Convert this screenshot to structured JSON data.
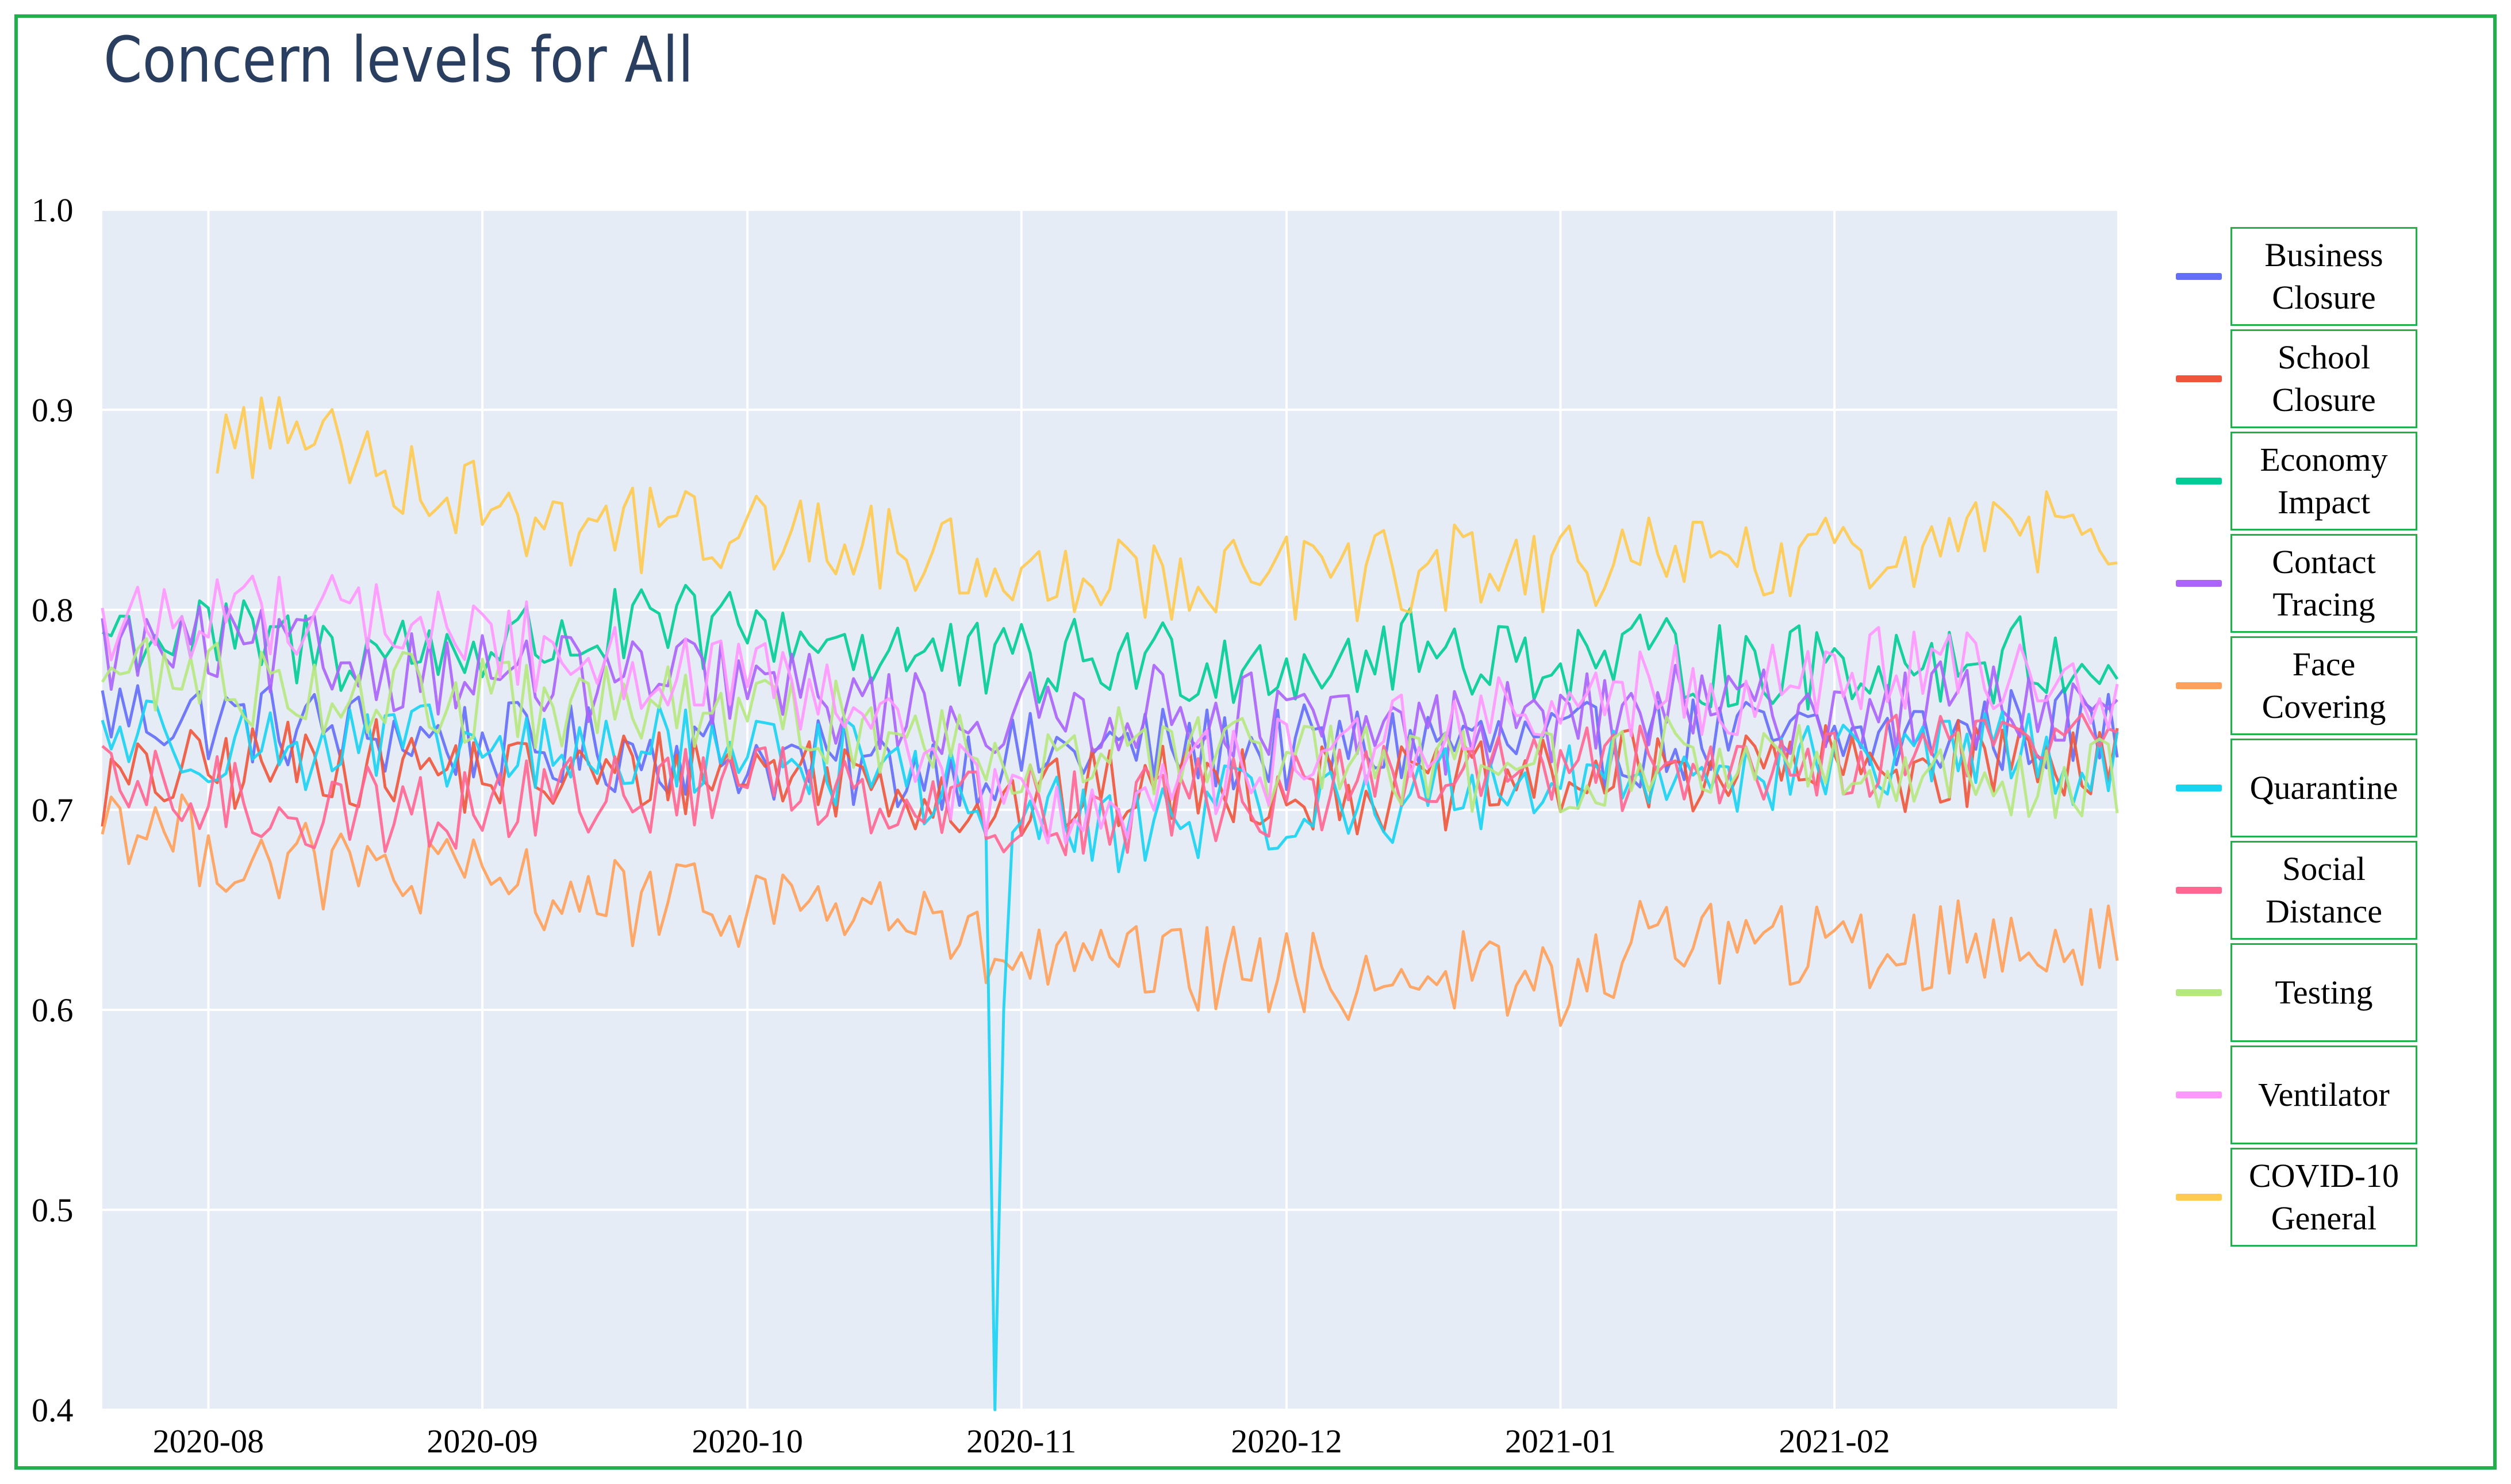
{
  "chart_data": {
    "type": "line",
    "title": "Concern levels for All",
    "xlabel": "",
    "ylabel": "",
    "x_range": [
      "2020-07-20",
      "2021-03-05"
    ],
    "ylim": [
      0.4,
      1.0
    ],
    "y_ticks": [
      "1.0",
      "0.9",
      "0.8",
      "0.7",
      "0.6",
      "0.5",
      "0.4"
    ],
    "x_ticks": [
      "2020-08",
      "2020-09",
      "2020-10",
      "2020-11",
      "2020-12",
      "2021-01",
      "2021-02"
    ],
    "grid": true,
    "legend_position": "right",
    "series": [
      {
        "name": "Business\nClosure",
        "color": "#636efa",
        "values": [
          0.75,
          0.745,
          0.74,
          0.735,
          0.73,
          0.73,
          0.725,
          0.72,
          0.725,
          0.73,
          0.73,
          0.73,
          0.735,
          0.73,
          0.735,
          0.735,
          0.735,
          0.74,
          0.74
        ]
      },
      {
        "name": "School\nClosure",
        "color": "#ef553b",
        "values": [
          0.71,
          0.72,
          0.725,
          0.72,
          0.715,
          0.72,
          0.72,
          0.715,
          0.7,
          0.71,
          0.715,
          0.71,
          0.71,
          0.715,
          0.72,
          0.72,
          0.72,
          0.725,
          0.73
        ]
      },
      {
        "name": "Economy\nImpact",
        "color": "#00cc96",
        "values": [
          0.79,
          0.785,
          0.78,
          0.78,
          0.785,
          0.79,
          0.79,
          0.78,
          0.77,
          0.775,
          0.775,
          0.775,
          0.78,
          0.775,
          0.775,
          0.77,
          0.775,
          0.775,
          0.775
        ]
      },
      {
        "name": "Contact\nTracing",
        "color": "#ab63fa",
        "values": [
          0.78,
          0.78,
          0.775,
          0.77,
          0.765,
          0.765,
          0.76,
          0.75,
          0.745,
          0.75,
          0.75,
          0.74,
          0.74,
          0.745,
          0.75,
          0.75,
          0.75,
          0.755,
          0.74
        ]
      },
      {
        "name": "Face\nCovering",
        "color": "#ffa15a",
        "values": [
          0.7,
          0.68,
          0.67,
          0.665,
          0.66,
          0.65,
          0.655,
          0.65,
          0.625,
          0.62,
          0.62,
          0.615,
          0.62,
          0.61,
          0.64,
          0.63,
          0.63,
          0.635,
          0.63
        ]
      },
      {
        "name": "Quarantine",
        "color": "#19d3f3",
        "values": [
          0.74,
          0.735,
          0.73,
          0.73,
          0.725,
          0.73,
          0.73,
          0.72,
          0.7,
          0.69,
          0.7,
          0.7,
          0.71,
          0.715,
          0.72,
          0.72,
          0.725,
          0.73,
          0.72
        ]
      },
      {
        "name": "Social\nDistance",
        "color": "#ff6692",
        "values": [
          0.71,
          0.705,
          0.7,
          0.7,
          0.705,
          0.71,
          0.715,
          0.71,
          0.7,
          0.7,
          0.705,
          0.71,
          0.715,
          0.72,
          0.72,
          0.725,
          0.73,
          0.735,
          0.74
        ]
      },
      {
        "name": "Testing",
        "color": "#b6e880",
        "values": [
          0.77,
          0.765,
          0.76,
          0.755,
          0.75,
          0.75,
          0.745,
          0.74,
          0.73,
          0.73,
          0.725,
          0.72,
          0.72,
          0.72,
          0.725,
          0.725,
          0.72,
          0.715,
          0.72
        ]
      },
      {
        "name": "Ventilator",
        "color": "#ff97ff",
        "values": [
          0.79,
          0.8,
          0.8,
          0.79,
          0.78,
          0.77,
          0.76,
          0.74,
          0.7,
          0.7,
          0.72,
          0.73,
          0.74,
          0.75,
          0.76,
          0.76,
          0.77,
          0.765,
          0.76
        ]
      },
      {
        "name": "COVID-10\nGeneral",
        "color": "#fecb52",
        "values": [
          null,
          0.885,
          0.89,
          0.86,
          0.845,
          0.84,
          0.84,
          0.83,
          0.82,
          0.82,
          0.815,
          0.815,
          0.82,
          0.82,
          0.825,
          0.82,
          0.83,
          0.835,
          0.845
        ]
      }
    ],
    "anomalies": [
      {
        "series": "Quarantine",
        "date": "2020-10-29",
        "value": 0.4
      }
    ]
  }
}
